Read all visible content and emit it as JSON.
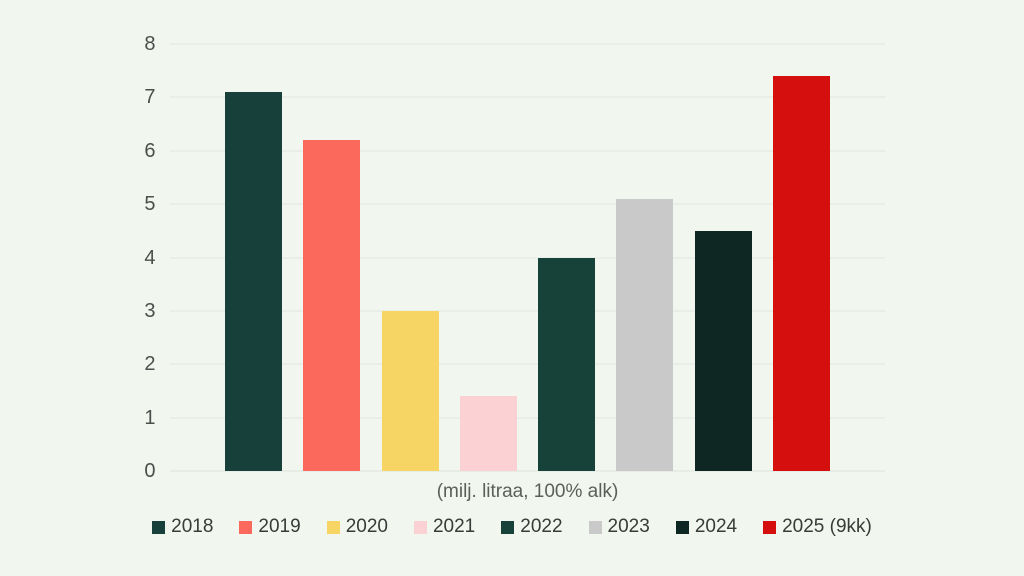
{
  "page": {
    "background_color": "#f1f6ef"
  },
  "chart_data": {
    "type": "bar",
    "title": "",
    "xlabel": "(milj. litraa, 100% alk)",
    "ylabel": "",
    "categories": [
      "2018",
      "2019",
      "2020",
      "2021",
      "2022",
      "2023",
      "2024",
      "2025 (9kk)"
    ],
    "values": [
      7.1,
      6.2,
      3.0,
      1.4,
      4.0,
      5.1,
      4.5,
      7.4
    ],
    "colors": [
      "#17403a",
      "#fb685c",
      "#f6d565",
      "#fcd1d3",
      "#174239",
      "#c9c9c9",
      "#0f2722",
      "#d40f0d"
    ],
    "ylim": [
      0,
      8
    ],
    "yticks": [
      0,
      1,
      2,
      3,
      4,
      5,
      6,
      7,
      8
    ],
    "grid": true,
    "legend_position": "bottom",
    "legend_entries": [
      "2018",
      "2019",
      "2020",
      "2021",
      "2022",
      "2023",
      "2024",
      "2025 (9kk)"
    ]
  }
}
